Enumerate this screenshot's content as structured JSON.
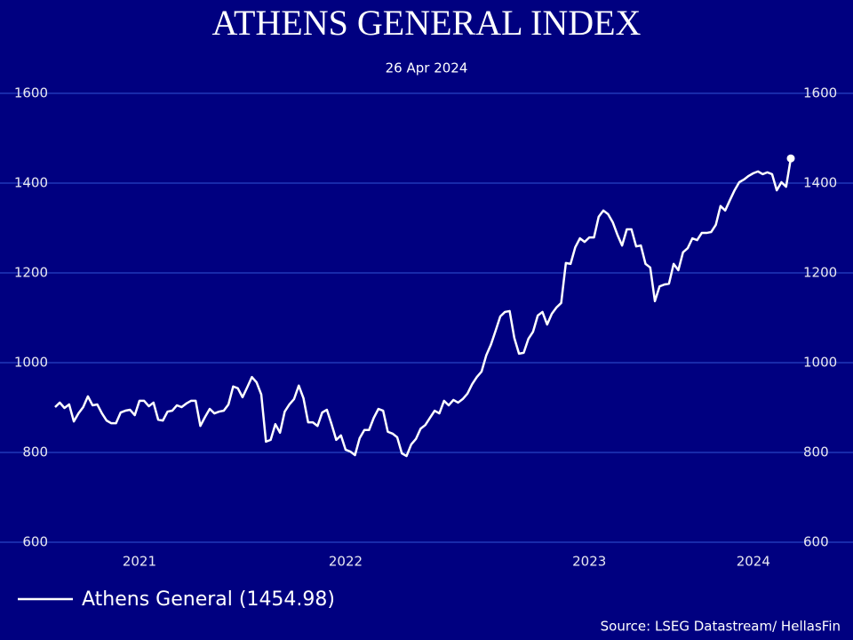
{
  "chart_data": {
    "type": "line",
    "title": "ATHENS GENERAL INDEX",
    "subtitle": "26 Apr 2024",
    "source": "Source: LSEG Datastream/ HellasFin",
    "categories": [
      null,
      null,
      null,
      null,
      null,
      null,
      null,
      null,
      null,
      null,
      null,
      null,
      null,
      null,
      null,
      null,
      null,
      null,
      "2021",
      null,
      null,
      null,
      null,
      null,
      null,
      null,
      null,
      null,
      null,
      null,
      null,
      null,
      null,
      null,
      null,
      null,
      null,
      null,
      null,
      null,
      null,
      null,
      null,
      null,
      null,
      null,
      null,
      null,
      null,
      null,
      null,
      null,
      null,
      null,
      null,
      null,
      null,
      null,
      null,
      null,
      null,
      null,
      "2022",
      null,
      null,
      null,
      null,
      null,
      null,
      null,
      null,
      null,
      null,
      null,
      null,
      null,
      null,
      null,
      null,
      null,
      null,
      null,
      null,
      null,
      null,
      null,
      null,
      null,
      null,
      null,
      null,
      null,
      null,
      null,
      null,
      null,
      null,
      null,
      null,
      null,
      null,
      null,
      null,
      null,
      null,
      null,
      null,
      null,
      null,
      null,
      null,
      null,
      null,
      null,
      "2023",
      null,
      null,
      null,
      null,
      null,
      null,
      null,
      null,
      null,
      null,
      null,
      null,
      null,
      null,
      null,
      null,
      null,
      null,
      null,
      null,
      null,
      null,
      null,
      null,
      null,
      null,
      null,
      null,
      null,
      null,
      null,
      null,
      null,
      null,
      "2024",
      null,
      null,
      null,
      null,
      null,
      null,
      null,
      null
    ],
    "series": [
      {
        "name": "Athens General (1454.98)",
        "color": "#ffffff",
        "values": [
          901,
          911,
          899,
          907,
          869,
          887,
          901,
          925,
          905,
          907,
          887,
          871,
          865,
          865,
          889,
          893,
          895,
          883,
          915,
          915,
          903,
          911,
          873,
          871,
          891,
          893,
          905,
          901,
          909,
          915,
          915,
          859,
          879,
          897,
          887,
          891,
          893,
          907,
          947,
          943,
          923,
          945,
          968,
          956,
          929,
          824,
          828,
          863,
          844,
          891,
          907,
          919,
          949,
          921,
          867,
          867,
          859,
          889,
          895,
          863,
          828,
          838,
          806,
          802,
          794,
          832,
          850,
          850,
          877,
          897,
          893,
          846,
          842,
          834,
          798,
          792,
          818,
          830,
          853,
          861,
          877,
          893,
          887,
          915,
          905,
          917,
          911,
          919,
          931,
          952,
          968,
          980,
          1016,
          1040,
          1071,
          1103,
          1113,
          1115,
          1055,
          1020,
          1022,
          1053,
          1069,
          1105,
          1113,
          1085,
          1109,
          1123,
          1133,
          1222,
          1220,
          1257,
          1277,
          1269,
          1279,
          1279,
          1325,
          1339,
          1331,
          1313,
          1285,
          1261,
          1297,
          1297,
          1259,
          1261,
          1220,
          1212,
          1137,
          1170,
          1174,
          1176,
          1220,
          1206,
          1246,
          1255,
          1277,
          1273,
          1289,
          1289,
          1291,
          1307,
          1349,
          1339,
          1362,
          1384,
          1402,
          1408,
          1416,
          1422,
          1426,
          1420,
          1424,
          1420,
          1384,
          1402,
          1392,
          1454.98
        ]
      }
    ],
    "ylim": [
      600,
      1600
    ],
    "yticks": [
      600,
      800,
      1000,
      1200,
      1400,
      1600
    ],
    "y2lim": [
      600,
      1600
    ],
    "y2ticks": [
      600,
      800,
      1000,
      1200,
      1400,
      1600
    ],
    "grid": true,
    "legend": "bottom-left"
  }
}
